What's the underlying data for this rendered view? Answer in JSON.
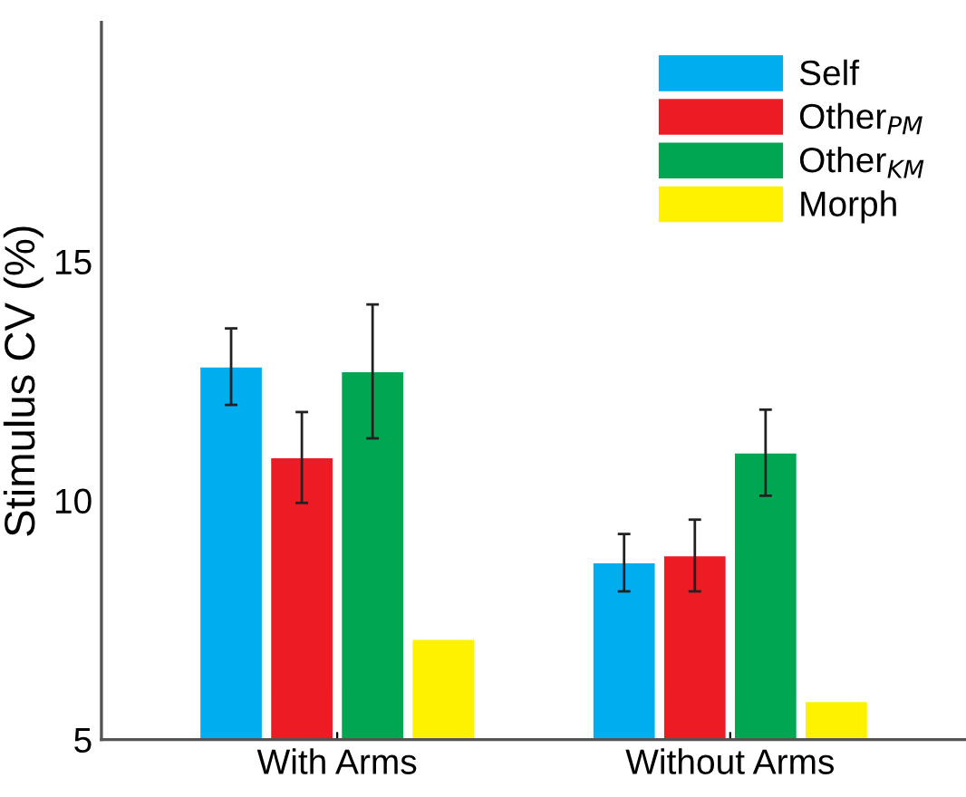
{
  "chart_data": {
    "type": "bar",
    "ylabel": "Stimulus CV (%)",
    "categories": [
      "With Arms",
      "Without Arms"
    ],
    "series": [
      {
        "name": "Self",
        "color": "#00aeef",
        "values": [
          12.8,
          8.7
        ],
        "errors": [
          0.8,
          0.6
        ]
      },
      {
        "name": "Other$_{PM}$",
        "color": "#ed1c24",
        "values": [
          10.9,
          8.85
        ],
        "errors": [
          0.95,
          0.75
        ]
      },
      {
        "name": "Other$_{KM}$",
        "color": "#00a651",
        "values": [
          12.7,
          11.0
        ],
        "errors": [
          1.4,
          0.9
        ]
      },
      {
        "name": "Morph",
        "color": "#fff200",
        "values": [
          7.1,
          5.8
        ],
        "errors": [
          null,
          null
        ]
      }
    ],
    "ylim": [
      5,
      20
    ],
    "yticks": [
      5,
      10,
      15
    ],
    "grid": false,
    "legend": "top right"
  }
}
